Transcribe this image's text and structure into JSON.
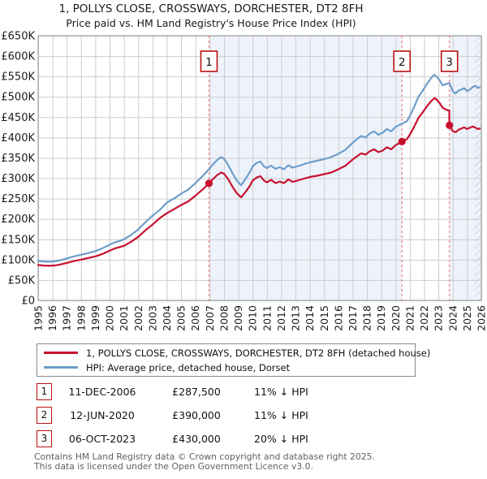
{
  "title": "1, POLLYS CLOSE, CROSSWAYS, DORCHESTER, DT2 8FH",
  "subtitle": "Price paid vs. HM Land Registry's House Price Index (HPI)",
  "chart_data": {
    "type": "line",
    "x_range": [
      1995,
      2026
    ],
    "y_range": [
      0,
      650
    ],
    "x_ticks": [
      1995,
      1996,
      1997,
      1998,
      1999,
      2000,
      2001,
      2002,
      2003,
      2004,
      2005,
      2006,
      2007,
      2008,
      2009,
      2010,
      2011,
      2012,
      2013,
      2014,
      2015,
      2016,
      2017,
      2018,
      2019,
      2020,
      2021,
      2022,
      2023,
      2024,
      2025,
      2026
    ],
    "y_ticks": [
      {
        "v": 0,
        "label": "£0"
      },
      {
        "v": 50,
        "label": "£50K"
      },
      {
        "v": 100,
        "label": "£100K"
      },
      {
        "v": 150,
        "label": "£150K"
      },
      {
        "v": 200,
        "label": "£200K"
      },
      {
        "v": 250,
        "label": "£250K"
      },
      {
        "v": 300,
        "label": "£300K"
      },
      {
        "v": 350,
        "label": "£350K"
      },
      {
        "v": 400,
        "label": "£400K"
      },
      {
        "v": 450,
        "label": "£450K"
      },
      {
        "v": 500,
        "label": "£500K"
      },
      {
        "v": 550,
        "label": "£550K"
      },
      {
        "v": 600,
        "label": "£600K"
      },
      {
        "v": 650,
        "label": "£650K"
      }
    ],
    "grid_color": "#cccccc",
    "border_color": "#999999",
    "band_color": "#eef3fb",
    "bands": [
      [
        2006.95,
        2020.45
      ],
      [
        2023.77,
        2026
      ]
    ],
    "hatch_band": [
      2025.55,
      2026
    ],
    "hatch_line_color": "#b3b3bd",
    "sale_line_color": "#f48080",
    "sale_box_border": "#bb1111",
    "sales": [
      {
        "num": "1",
        "year": 2006.95,
        "price_k": 287.5,
        "date": "11-DEC-2006",
        "price": "£287,500",
        "hpi_note": "11% ↓ HPI"
      },
      {
        "num": "2",
        "year": 2020.45,
        "price_k": 390,
        "date": "12-JUN-2020",
        "price": "£390,000",
        "hpi_note": "11% ↓ HPI"
      },
      {
        "num": "3",
        "year": 2023.77,
        "price_k": 430,
        "date": "06-OCT-2023",
        "price": "£430,000",
        "hpi_note": "20% ↓ HPI"
      }
    ],
    "series": [
      {
        "name": "1, POLLYS CLOSE, CROSSWAYS, DORCHESTER, DT2 8FH (detached house)",
        "color": "#c8102e",
        "width": 2.2,
        "points": [
          [
            1995,
            87
          ],
          [
            1995.4,
            85.5
          ],
          [
            1995.8,
            85
          ],
          [
            1996.2,
            86
          ],
          [
            1996.6,
            88.5
          ],
          [
            1997,
            92
          ],
          [
            1997.5,
            96.5
          ],
          [
            1998,
            100
          ],
          [
            1998.5,
            104
          ],
          [
            1999,
            108
          ],
          [
            1999.5,
            114
          ],
          [
            2000,
            122
          ],
          [
            2000.4,
            128
          ],
          [
            2000.7,
            131
          ],
          [
            2001,
            134
          ],
          [
            2001.5,
            144
          ],
          [
            2002,
            156
          ],
          [
            2002.5,
            172
          ],
          [
            2003,
            186
          ],
          [
            2003.5,
            202
          ],
          [
            2004,
            214
          ],
          [
            2004.5,
            224
          ],
          [
            2005,
            234
          ],
          [
            2005.5,
            243
          ],
          [
            2006,
            257
          ],
          [
            2006.5,
            272
          ],
          [
            2006.95,
            287.5
          ],
          [
            2007.2,
            297
          ],
          [
            2007.5,
            307
          ],
          [
            2007.8,
            314
          ],
          [
            2008,
            311
          ],
          [
            2008.3,
            297
          ],
          [
            2008.6,
            279
          ],
          [
            2008.9,
            263
          ],
          [
            2009.2,
            253
          ],
          [
            2009.5,
            266
          ],
          [
            2009.8,
            281
          ],
          [
            2010,
            294
          ],
          [
            2010.3,
            302
          ],
          [
            2010.55,
            305
          ],
          [
            2010.8,
            294
          ],
          [
            2011,
            290
          ],
          [
            2011.3,
            296
          ],
          [
            2011.6,
            288
          ],
          [
            2011.9,
            292
          ],
          [
            2012.2,
            288
          ],
          [
            2012.5,
            297
          ],
          [
            2012.8,
            291
          ],
          [
            2013.1,
            294
          ],
          [
            2013.4,
            297
          ],
          [
            2013.7,
            300
          ],
          [
            2014,
            303
          ],
          [
            2014.5,
            306
          ],
          [
            2015,
            310
          ],
          [
            2015.5,
            314
          ],
          [
            2016,
            322
          ],
          [
            2016.5,
            331
          ],
          [
            2017,
            346
          ],
          [
            2017.3,
            354
          ],
          [
            2017.6,
            361
          ],
          [
            2017.9,
            358
          ],
          [
            2018.2,
            366
          ],
          [
            2018.5,
            371
          ],
          [
            2018.8,
            364
          ],
          [
            2019.1,
            368
          ],
          [
            2019.4,
            376
          ],
          [
            2019.7,
            371
          ],
          [
            2020,
            381
          ],
          [
            2020.45,
            390
          ],
          [
            2020.8,
            396
          ],
          [
            2021,
            407
          ],
          [
            2021.3,
            426
          ],
          [
            2021.6,
            448
          ],
          [
            2021.9,
            462
          ],
          [
            2022.2,
            477
          ],
          [
            2022.5,
            490
          ],
          [
            2022.75,
            497
          ],
          [
            2022.9,
            492
          ],
          [
            2023.1,
            484
          ],
          [
            2023.3,
            473
          ],
          [
            2023.5,
            469
          ],
          [
            2023.76,
            466
          ],
          [
            2023.77,
            430
          ],
          [
            2024,
            416
          ],
          [
            2024.2,
            413
          ],
          [
            2024.4,
            419
          ],
          [
            2024.6,
            422
          ],
          [
            2024.8,
            425
          ],
          [
            2025,
            421
          ],
          [
            2025.2,
            424
          ],
          [
            2025.4,
            427
          ],
          [
            2025.6,
            424
          ],
          [
            2025.75,
            421
          ],
          [
            2025.9,
            422
          ]
        ]
      },
      {
        "name": "HPI: Average price, detached house, Dorset",
        "color": "#6d9dcb",
        "width": 2.2,
        "points": [
          [
            1995,
            97
          ],
          [
            1995.4,
            95.5
          ],
          [
            1995.8,
            95
          ],
          [
            1996.2,
            96
          ],
          [
            1996.6,
            99
          ],
          [
            1997,
            103
          ],
          [
            1997.5,
            108
          ],
          [
            1998,
            112
          ],
          [
            1998.5,
            116
          ],
          [
            1999,
            121
          ],
          [
            1999.5,
            128
          ],
          [
            2000,
            137
          ],
          [
            2000.4,
            143
          ],
          [
            2000.7,
            146
          ],
          [
            2001,
            150
          ],
          [
            2001.5,
            161
          ],
          [
            2002,
            174
          ],
          [
            2002.5,
            192
          ],
          [
            2003,
            208
          ],
          [
            2003.5,
            222
          ],
          [
            2004,
            240
          ],
          [
            2004.5,
            250
          ],
          [
            2005,
            262
          ],
          [
            2005.5,
            272
          ],
          [
            2006,
            288
          ],
          [
            2006.5,
            305
          ],
          [
            2006.95,
            322
          ],
          [
            2007.2,
            333
          ],
          [
            2007.5,
            344
          ],
          [
            2007.8,
            352
          ],
          [
            2008,
            348
          ],
          [
            2008.3,
            332
          ],
          [
            2008.6,
            312
          ],
          [
            2008.9,
            294
          ],
          [
            2009.2,
            283
          ],
          [
            2009.5,
            298
          ],
          [
            2009.8,
            315
          ],
          [
            2010,
            329
          ],
          [
            2010.3,
            338
          ],
          [
            2010.55,
            341
          ],
          [
            2010.8,
            329
          ],
          [
            2011,
            325
          ],
          [
            2011.3,
            331
          ],
          [
            2011.6,
            323
          ],
          [
            2011.9,
            327
          ],
          [
            2012.2,
            322
          ],
          [
            2012.5,
            332
          ],
          [
            2012.8,
            326
          ],
          [
            2013.1,
            329
          ],
          [
            2013.4,
            332
          ],
          [
            2013.7,
            336
          ],
          [
            2014,
            339
          ],
          [
            2014.5,
            343
          ],
          [
            2015,
            347
          ],
          [
            2015.5,
            352
          ],
          [
            2016,
            360
          ],
          [
            2016.5,
            370
          ],
          [
            2017,
            387
          ],
          [
            2017.3,
            396
          ],
          [
            2017.6,
            404
          ],
          [
            2017.9,
            400
          ],
          [
            2018.2,
            410
          ],
          [
            2018.5,
            415
          ],
          [
            2018.8,
            407
          ],
          [
            2019.1,
            412
          ],
          [
            2019.4,
            421
          ],
          [
            2019.7,
            415
          ],
          [
            2020,
            426
          ],
          [
            2020.45,
            434
          ],
          [
            2020.8,
            440
          ],
          [
            2021,
            453
          ],
          [
            2021.3,
            475
          ],
          [
            2021.6,
            500
          ],
          [
            2021.9,
            515
          ],
          [
            2022.2,
            532
          ],
          [
            2022.5,
            547
          ],
          [
            2022.7,
            554
          ],
          [
            2022.9,
            549
          ],
          [
            2023.1,
            540
          ],
          [
            2023.3,
            528
          ],
          [
            2023.5,
            531
          ],
          [
            2023.77,
            534
          ],
          [
            2024,
            514
          ],
          [
            2024.2,
            508
          ],
          [
            2024.4,
            515
          ],
          [
            2024.6,
            518
          ],
          [
            2024.8,
            521
          ],
          [
            2025,
            514
          ],
          [
            2025.2,
            518
          ],
          [
            2025.4,
            524
          ],
          [
            2025.6,
            527
          ],
          [
            2025.75,
            522
          ],
          [
            2025.9,
            523
          ]
        ]
      }
    ]
  },
  "legend": {
    "items": [
      {
        "label": "1, POLLYS CLOSE, CROSSWAYS, DORCHESTER, DT2 8FH (detached house)",
        "color": "#c8102e"
      },
      {
        "label": "HPI: Average price, detached house, Dorset",
        "color": "#6d9dcb"
      }
    ]
  },
  "footer": {
    "line1": "Contains HM Land Registry data © Crown copyright and database right 2025.",
    "line2": "This data is licensed under the Open Government Licence v3.0."
  }
}
